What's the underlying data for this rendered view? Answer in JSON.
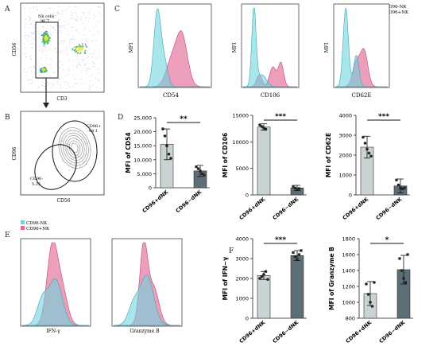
{
  "panels": {
    "A": {
      "letter": "A",
      "gate_label": "Nk cells",
      "gate_value": "96.7",
      "x_axis": "CD3",
      "y_axis": "CD56"
    },
    "B": {
      "letter": "B",
      "x_axis": "CD56",
      "y_axis": "CD96",
      "gates": [
        {
          "label": "CD96+",
          "value": "94.1"
        },
        {
          "label": "CD96-",
          "value": "5.25"
        }
      ]
    },
    "C": {
      "letter": "C",
      "legend": [
        {
          "label": "CD96-NK",
          "color": "#6fd3de"
        },
        {
          "label": "CD96+NK",
          "color": "#e26a96"
        }
      ],
      "y_axis": "MFI",
      "histograms": [
        {
          "x_axis": "CD54"
        },
        {
          "x_axis": "CD106"
        },
        {
          "x_axis": "CD62E"
        }
      ]
    },
    "D": {
      "letter": "D"
    },
    "E": {
      "letter": "E",
      "legend": [
        {
          "label": "CD96-NK",
          "color": "#6fd3de"
        },
        {
          "label": "CD96+NK",
          "color": "#e26a96"
        }
      ],
      "histograms": [
        {
          "x_axis": "IFN-γ"
        },
        {
          "x_axis": "Granzyme B"
        }
      ]
    },
    "F": {
      "letter": "F"
    }
  },
  "colors": {
    "bar_light": "#c9d3d3",
    "bar_dark": "#5c6f76",
    "cyan": "#6fd3de",
    "pink": "#e26a96"
  },
  "chart_data": [
    {
      "type": "bar",
      "ylabel": "MFI of CD54",
      "categories": [
        "CD96+dNK",
        "CD96−dNK"
      ],
      "values": [
        15500,
        6000
      ],
      "errors": [
        5500,
        2000
      ],
      "points": [
        [
          21000,
          18500,
          15000,
          12000,
          10500
        ],
        [
          7500,
          6800,
          6000,
          5000,
          4500
        ]
      ],
      "ylim": [
        0,
        25000
      ],
      "yticks": [
        0,
        5000,
        10000,
        15000,
        20000,
        25000
      ],
      "ytick_labels": [
        "0",
        "5,000",
        "10,000",
        "15,000",
        "20,000",
        "25,000"
      ],
      "sig": "**"
    },
    {
      "type": "bar",
      "ylabel": "MFI of CD106",
      "categories": [
        "CD96+dNK",
        "CD96−dNK"
      ],
      "values": [
        12800,
        1300
      ],
      "errors": [
        600,
        500
      ],
      "points": [
        [
          13200,
          12900,
          12600,
          12400
        ],
        [
          1600,
          1300,
          1000,
          1200
        ]
      ],
      "ylim": [
        0,
        15000
      ],
      "yticks": [
        0,
        5000,
        10000,
        15000
      ],
      "ytick_labels": [
        "0",
        "5000",
        "10000",
        "15000"
      ],
      "sig": "***"
    },
    {
      "type": "bar",
      "ylabel": "MFI of CD62E",
      "categories": [
        "CD96+dNK",
        "CD96−dNK"
      ],
      "values": [
        2400,
        450
      ],
      "errors": [
        550,
        350
      ],
      "points": [
        [
          2900,
          2600,
          2300,
          2100,
          1950
        ],
        [
          750,
          500,
          350,
          300,
          350
        ]
      ],
      "ylim": [
        0,
        4000
      ],
      "yticks": [
        0,
        1000,
        2000,
        3000,
        4000
      ],
      "ytick_labels": [
        "0",
        "1000",
        "2000",
        "3000",
        "4000"
      ],
      "sig": "***"
    },
    {
      "type": "bar",
      "ylabel": "MFI of IFN−γ",
      "categories": [
        "CD96+dNK",
        "CD96−dNK"
      ],
      "values": [
        2150,
        3150
      ],
      "errors": [
        200,
        250
      ],
      "points": [
        [
          2000,
          2100,
          2200,
          2350,
          1950
        ],
        [
          3300,
          3100,
          2950,
          3200,
          3400
        ]
      ],
      "ylim": [
        0,
        4000
      ],
      "yticks": [
        0,
        1000,
        2000,
        3000,
        4000
      ],
      "ytick_labels": [
        "0",
        "1000",
        "2000",
        "3000",
        "4000"
      ],
      "sig": "***"
    },
    {
      "type": "bar",
      "ylabel": "MFI of Granzyme B",
      "categories": [
        "CD96+dNK",
        "CD96−dNK"
      ],
      "values": [
        1110,
        1410
      ],
      "errors": [
        150,
        180
      ],
      "points": [
        [
          1230,
          1100,
          1000,
          950,
          1250
        ],
        [
          1550,
          1400,
          1300,
          1250,
          1600
        ]
      ],
      "ylim": [
        800,
        1800
      ],
      "yticks": [
        800,
        1000,
        1200,
        1400,
        1600,
        1800
      ],
      "ytick_labels": [
        "800",
        "1000",
        "1200",
        "1400",
        "1600",
        "1800"
      ],
      "sig": "*"
    }
  ]
}
